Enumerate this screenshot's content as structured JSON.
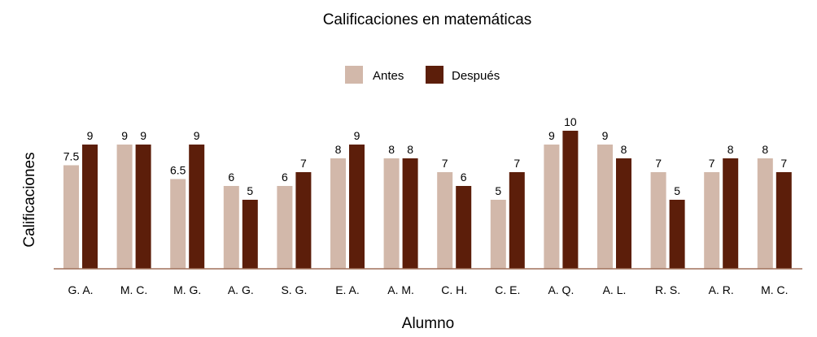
{
  "chart_data": {
    "type": "bar",
    "title": "Calificaciones en matemáticas",
    "xlabel": "Alumno",
    "ylabel": "Calificaciones",
    "categories": [
      "G. A.",
      "M. C.",
      "M. G.",
      "A. G.",
      "S. G.",
      "E. A.",
      "A. M.",
      "C. H.",
      "C. E.",
      "A. Q.",
      "A. L.",
      "R. S.",
      "A. R.",
      "M. C."
    ],
    "series": [
      {
        "name": "Antes",
        "color": "#d2b8aa",
        "values": [
          7.5,
          9,
          6.5,
          6,
          6,
          8,
          8,
          7,
          5,
          9,
          9,
          7,
          7,
          8
        ]
      },
      {
        "name": "Después",
        "color": "#5c1e0a",
        "values": [
          9,
          9,
          9,
          5,
          7,
          9,
          8,
          6,
          7,
          10,
          8,
          5,
          8,
          7
        ]
      }
    ],
    "ylim": [
      0,
      10
    ],
    "grid": false,
    "legend_position": "top-center",
    "data_labels": true,
    "axis_color": "#a0705a"
  }
}
